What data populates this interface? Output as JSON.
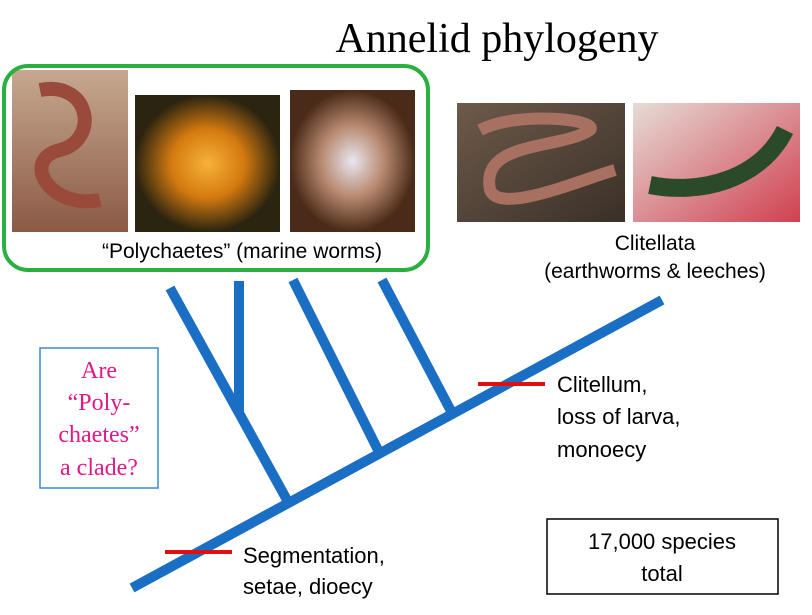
{
  "title": "Annelid phylogeny",
  "polychaetes_label": "“Polychaetes” (marine worms)",
  "clitellata_label": [
    "Clitellata",
    "(earthworms & leeches)"
  ],
  "question": [
    "Are",
    "“Poly-",
    "chaetes”",
    "a clade?"
  ],
  "traits_base": [
    "Segmentation,",
    "setae, dioecy"
  ],
  "traits_clitellata": [
    "Clitellum,",
    "loss of larva,",
    "monoecy"
  ],
  "species_box": [
    "17,000 species",
    "total"
  ]
}
